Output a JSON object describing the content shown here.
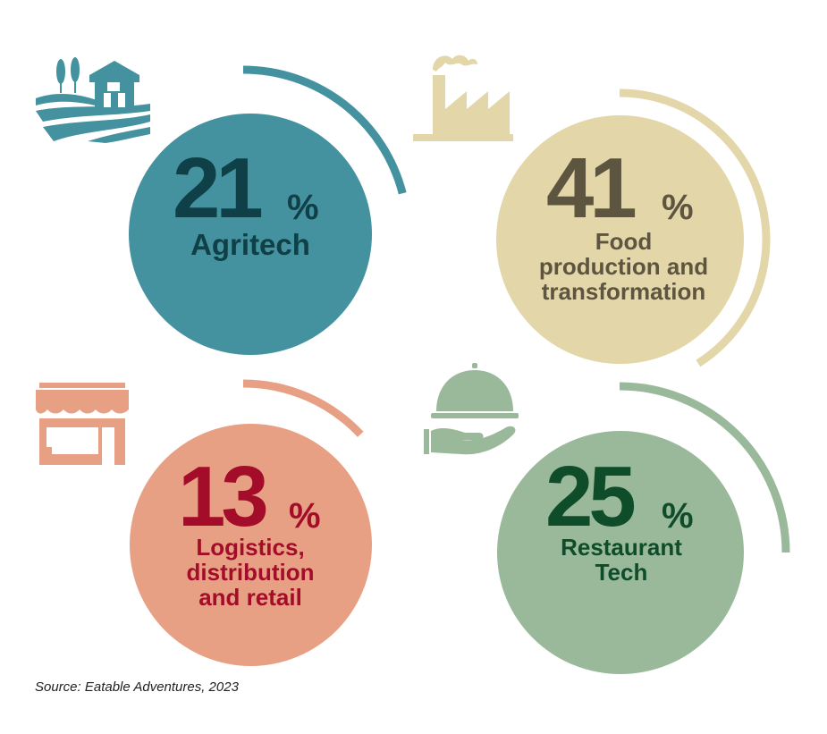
{
  "chart_data": {
    "type": "pie",
    "categories": [
      "Agritech",
      "Food production and transformation",
      "Logistics, distribution and retail",
      "Restaurant Tech"
    ],
    "values": [
      21,
      41,
      13,
      25
    ],
    "unit": "%",
    "items": [
      {
        "value": "21",
        "unit": "%",
        "label_lines": [
          "Agritech"
        ],
        "color": "#44929f",
        "text_color": "#0f3f47",
        "icon": "farm-barn-icon"
      },
      {
        "value": "41",
        "unit": "%",
        "label_lines": [
          "Food",
          "production and",
          "transformation"
        ],
        "color": "#e3d6a8",
        "text_color": "#5e5540",
        "icon": "factory-icon"
      },
      {
        "value": "13",
        "unit": "%",
        "label_lines": [
          "Logistics,",
          "distribution",
          "and retail"
        ],
        "color": "#e8a084",
        "text_color": "#a40d2a",
        "icon": "storefront-icon"
      },
      {
        "value": "25",
        "unit": "%",
        "label_lines": [
          "Restaurant",
          "Tech"
        ],
        "color": "#9ab99b",
        "text_color": "#0f4d2a",
        "icon": "serving-cloche-icon"
      }
    ]
  },
  "source": "Source: Eatable Adventures, 2023"
}
